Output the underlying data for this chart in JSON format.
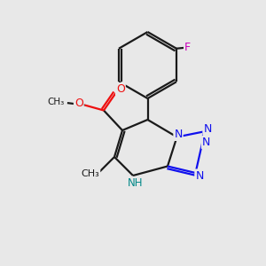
{
  "background_color": "#e8e8e8",
  "bond_color": "#1a1a1a",
  "nitrogen_color": "#1010ee",
  "oxygen_color": "#ee1010",
  "fluorine_color": "#cc00bb",
  "nh_color": "#008888",
  "lw": 1.6,
  "figsize": [
    3.0,
    3.0
  ],
  "dpi": 100,
  "xlim": [
    0,
    10
  ],
  "ylim": [
    0,
    10
  ]
}
